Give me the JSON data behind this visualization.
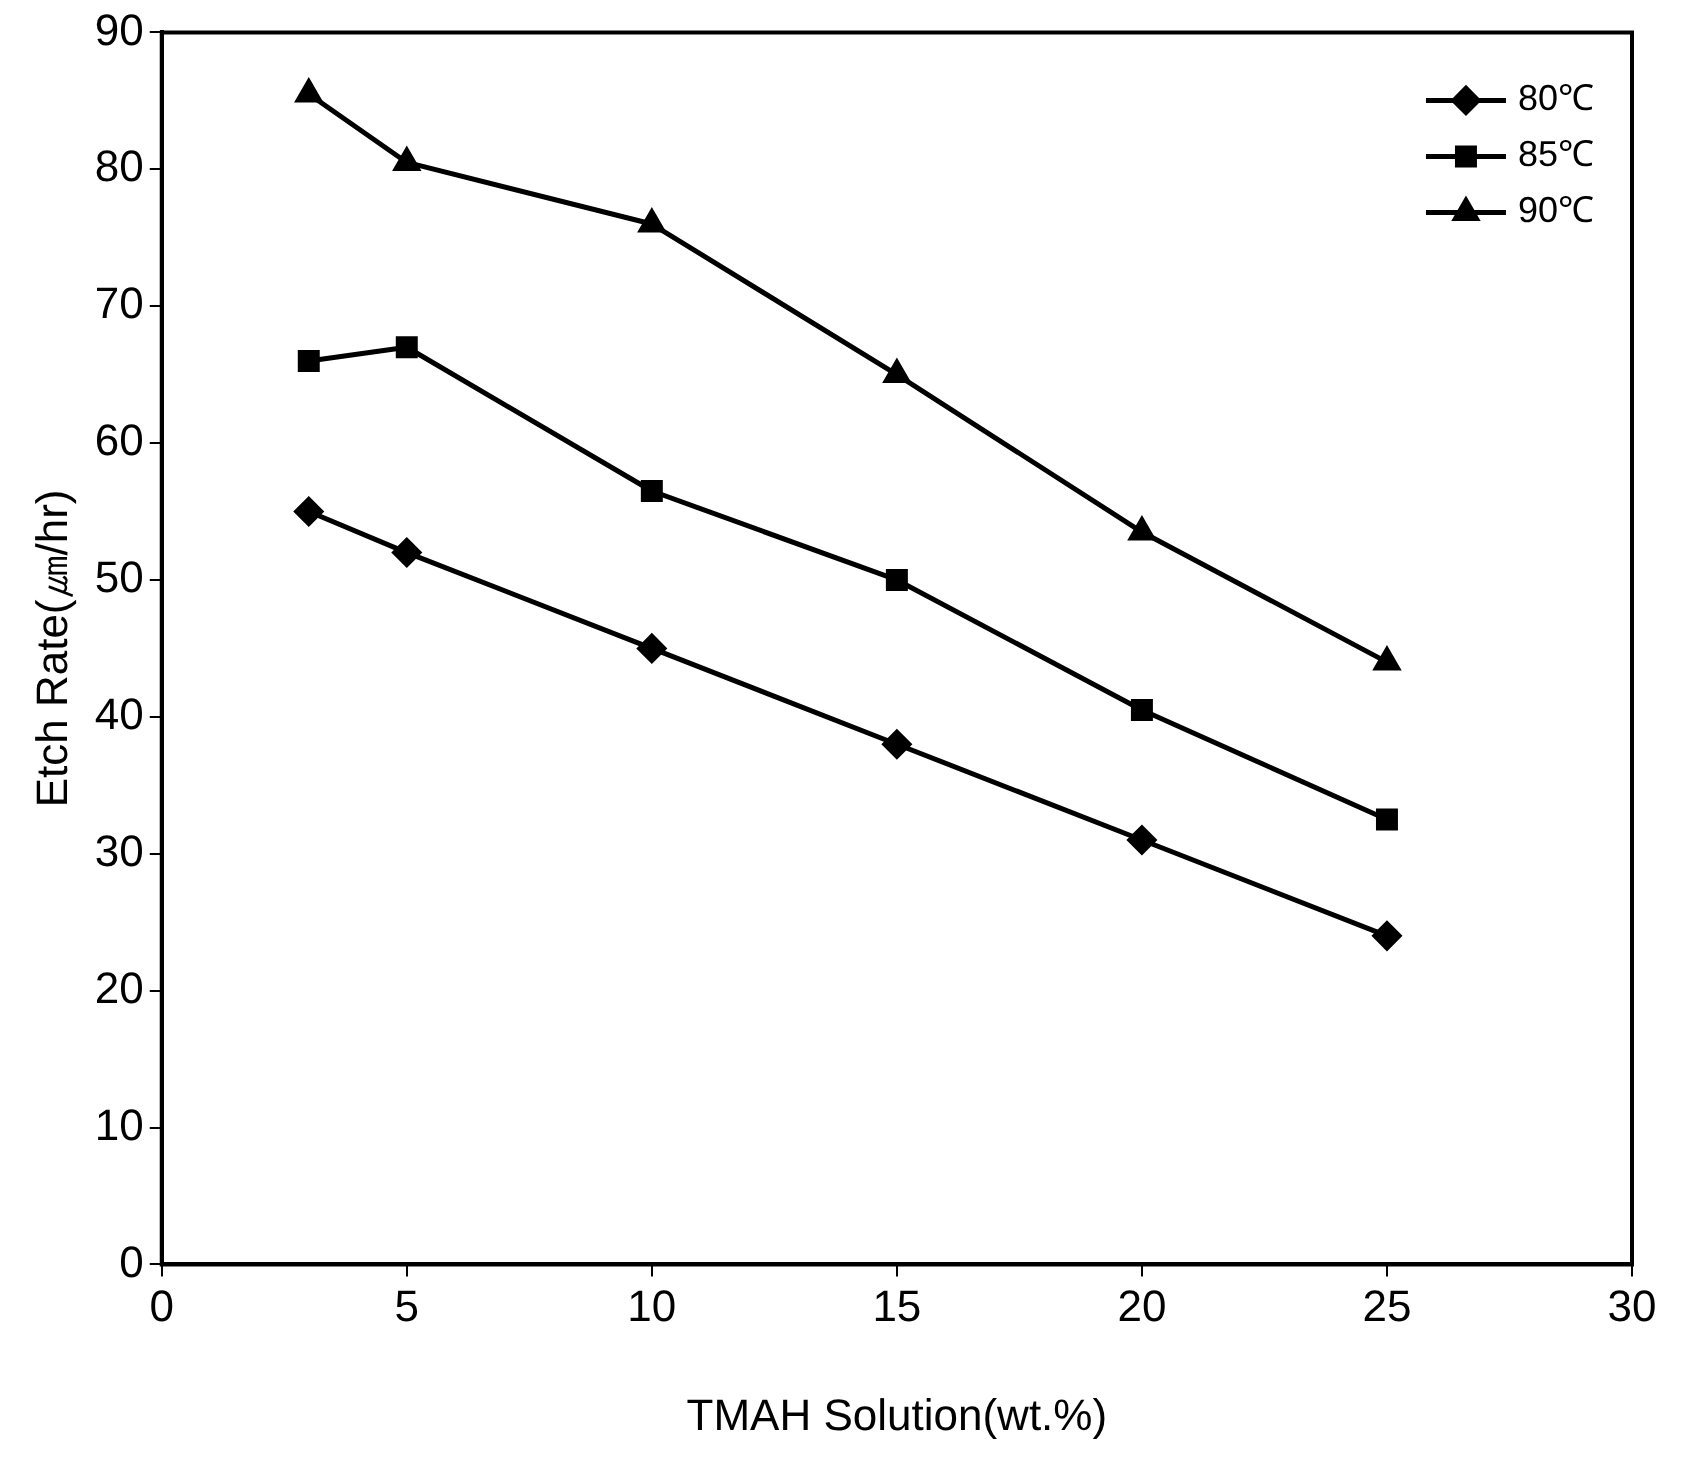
{
  "chart_data": {
    "type": "line",
    "xlabel": "TMAH Solution(wt.%)",
    "ylabel": "Etch Rate(㎛/hr)",
    "x": [
      3,
      5,
      10,
      15,
      20,
      25
    ],
    "series": [
      {
        "name": "80℃",
        "color": "#000000",
        "marker": "diamond",
        "values": [
          55,
          52,
          45,
          38,
          31,
          24
        ]
      },
      {
        "name": "85℃",
        "color": "#000000",
        "marker": "square",
        "values": [
          66,
          67,
          56.5,
          50,
          40.5,
          32.5
        ]
      },
      {
        "name": "90℃",
        "color": "#000000",
        "marker": "triangle",
        "values": [
          85.5,
          80.5,
          76,
          65,
          53.5,
          44
        ]
      }
    ],
    "xlim": [
      0,
      30
    ],
    "xticks": [
      0,
      5,
      10,
      15,
      20,
      25,
      30
    ],
    "ylim": [
      0,
      90
    ],
    "yticks": [
      0,
      10,
      20,
      30,
      40,
      50,
      60,
      70,
      80,
      90
    ],
    "grid": false,
    "legend": "top right",
    "line_style": "solid"
  }
}
